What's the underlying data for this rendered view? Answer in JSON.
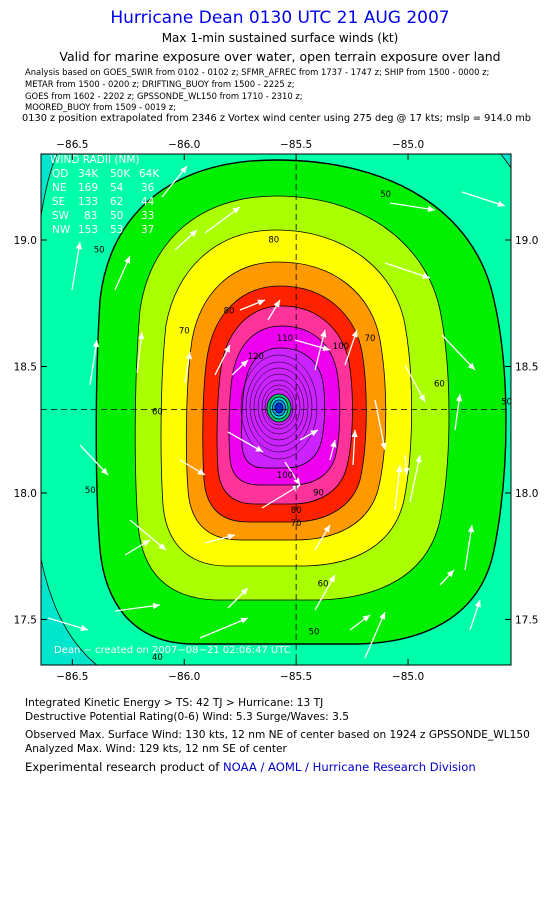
{
  "header": {
    "title": "Hurricane Dean 0130 UTC 21 AUG 2007",
    "subtitle": "Max 1-min sustained surface winds (kt)",
    "validity": "Valid for marine exposure over water, open terrain exposure over land",
    "analysis_lines": [
      "Analysis based on  GOES_SWIR from 0102 - 0102 z;  SFMR_AFREC from 1737 - 1747 z;  SHIP from 1500 - 0000 z;",
      "METAR from 1500 - 0200 z;  DRIFTING_BUOY from 1500 - 2225 z;",
      "GOES from 1602 - 2202 z;  GPSSONDE_WL150 from 1710 - 2310 z;",
      "MOORED_BUOY from 1509 - 0019 z;"
    ],
    "position_note": "0130 z position extrapolated from 2346 z Vortex wind center using 275 deg @ 17 kts; mslp = 914.0 mb"
  },
  "map": {
    "lon_ticks": [
      "−86.5",
      "−86.0",
      "−85.5",
      "−85.0"
    ],
    "lat_ticks": [
      "19.0",
      "18.5",
      "18.0",
      "17.5"
    ],
    "lon_range": [
      -86.64,
      -84.54
    ],
    "lat_range": [
      17.32,
      19.34
    ],
    "center": {
      "lon": -85.5,
      "lat": 18.33
    },
    "contour_labels": [
      {
        "text": "50",
        "lon": -85.1,
        "lat": 19.17
      },
      {
        "text": "50",
        "lon": -84.56,
        "lat": 18.35
      },
      {
        "text": "50",
        "lon": -86.42,
        "lat": 18.0
      },
      {
        "text": "50",
        "lon": -85.42,
        "lat": 17.44
      },
      {
        "text": "50",
        "lon": -86.38,
        "lat": 18.95
      },
      {
        "text": "60",
        "lon": -86.12,
        "lat": 18.31
      },
      {
        "text": "60",
        "lon": -84.86,
        "lat": 18.42
      },
      {
        "text": "60",
        "lon": -85.38,
        "lat": 17.63
      },
      {
        "text": "70",
        "lon": -85.17,
        "lat": 18.6
      },
      {
        "text": "70",
        "lon": -86.0,
        "lat": 18.63
      },
      {
        "text": "70",
        "lon": -85.5,
        "lat": 17.87
      },
      {
        "text": "80",
        "lon": -85.6,
        "lat": 18.99
      },
      {
        "text": "80",
        "lon": -85.8,
        "lat": 18.71
      },
      {
        "text": "80",
        "lon": -85.5,
        "lat": 17.92
      },
      {
        "text": "90",
        "lon": -85.4,
        "lat": 17.99
      },
      {
        "text": "100",
        "lon": -85.3,
        "lat": 18.57
      },
      {
        "text": "100",
        "lon": -85.55,
        "lat": 18.06
      },
      {
        "text": "110",
        "lon": -85.55,
        "lat": 18.6
      },
      {
        "text": "120",
        "lon": -85.68,
        "lat": 18.53
      },
      {
        "text": "40",
        "lon": -86.12,
        "lat": 17.34
      }
    ],
    "wind_radii": {
      "title": "WIND RADII (NM)",
      "header": [
        "QD",
        "34K",
        "50K",
        "64K"
      ],
      "rows": [
        [
          "NE",
          "169",
          "54",
          "36"
        ],
        [
          "SE",
          "133",
          "62",
          "44"
        ],
        [
          "SW",
          "83",
          "50",
          "33"
        ],
        [
          "NW",
          "153",
          "53",
          "37"
        ]
      ]
    },
    "credit": "Dean  −  created on  2007−08−21  02:06:47  UTC"
  },
  "footer": {
    "kinetic": "Integrated Kinetic Energy > TS: 42 TJ   > Hurricane: 13 TJ",
    "potential": "Destructive Potential Rating(0-6)   Wind: 5.3 Surge/Waves: 3.5",
    "observed": "Observed Max. Surface Wind: 130 kts, 12 nm NE of center based on 1924 z GPSSONDE_WL150",
    "analyzed": "Analyzed Max. Wind: 129 kts, 12 nm SE of center",
    "credit_prefix": "Experimental research product of",
    "credit_link": "NOAA / AOML / Hurricane Research Division"
  },
  "colors": {
    "band_30": "#00e6cc",
    "band_40": "#00ffaa",
    "band_50": "#00f000",
    "band_60": "#aaff00",
    "band_70": "#ffff00",
    "band_80": "#ff9900",
    "band_90": "#ff2200",
    "band_100": "#ff3399",
    "band_110": "#ee00ee",
    "band_120": "#cc22ff",
    "eye": "#0033cc",
    "title": "#0000ee"
  }
}
